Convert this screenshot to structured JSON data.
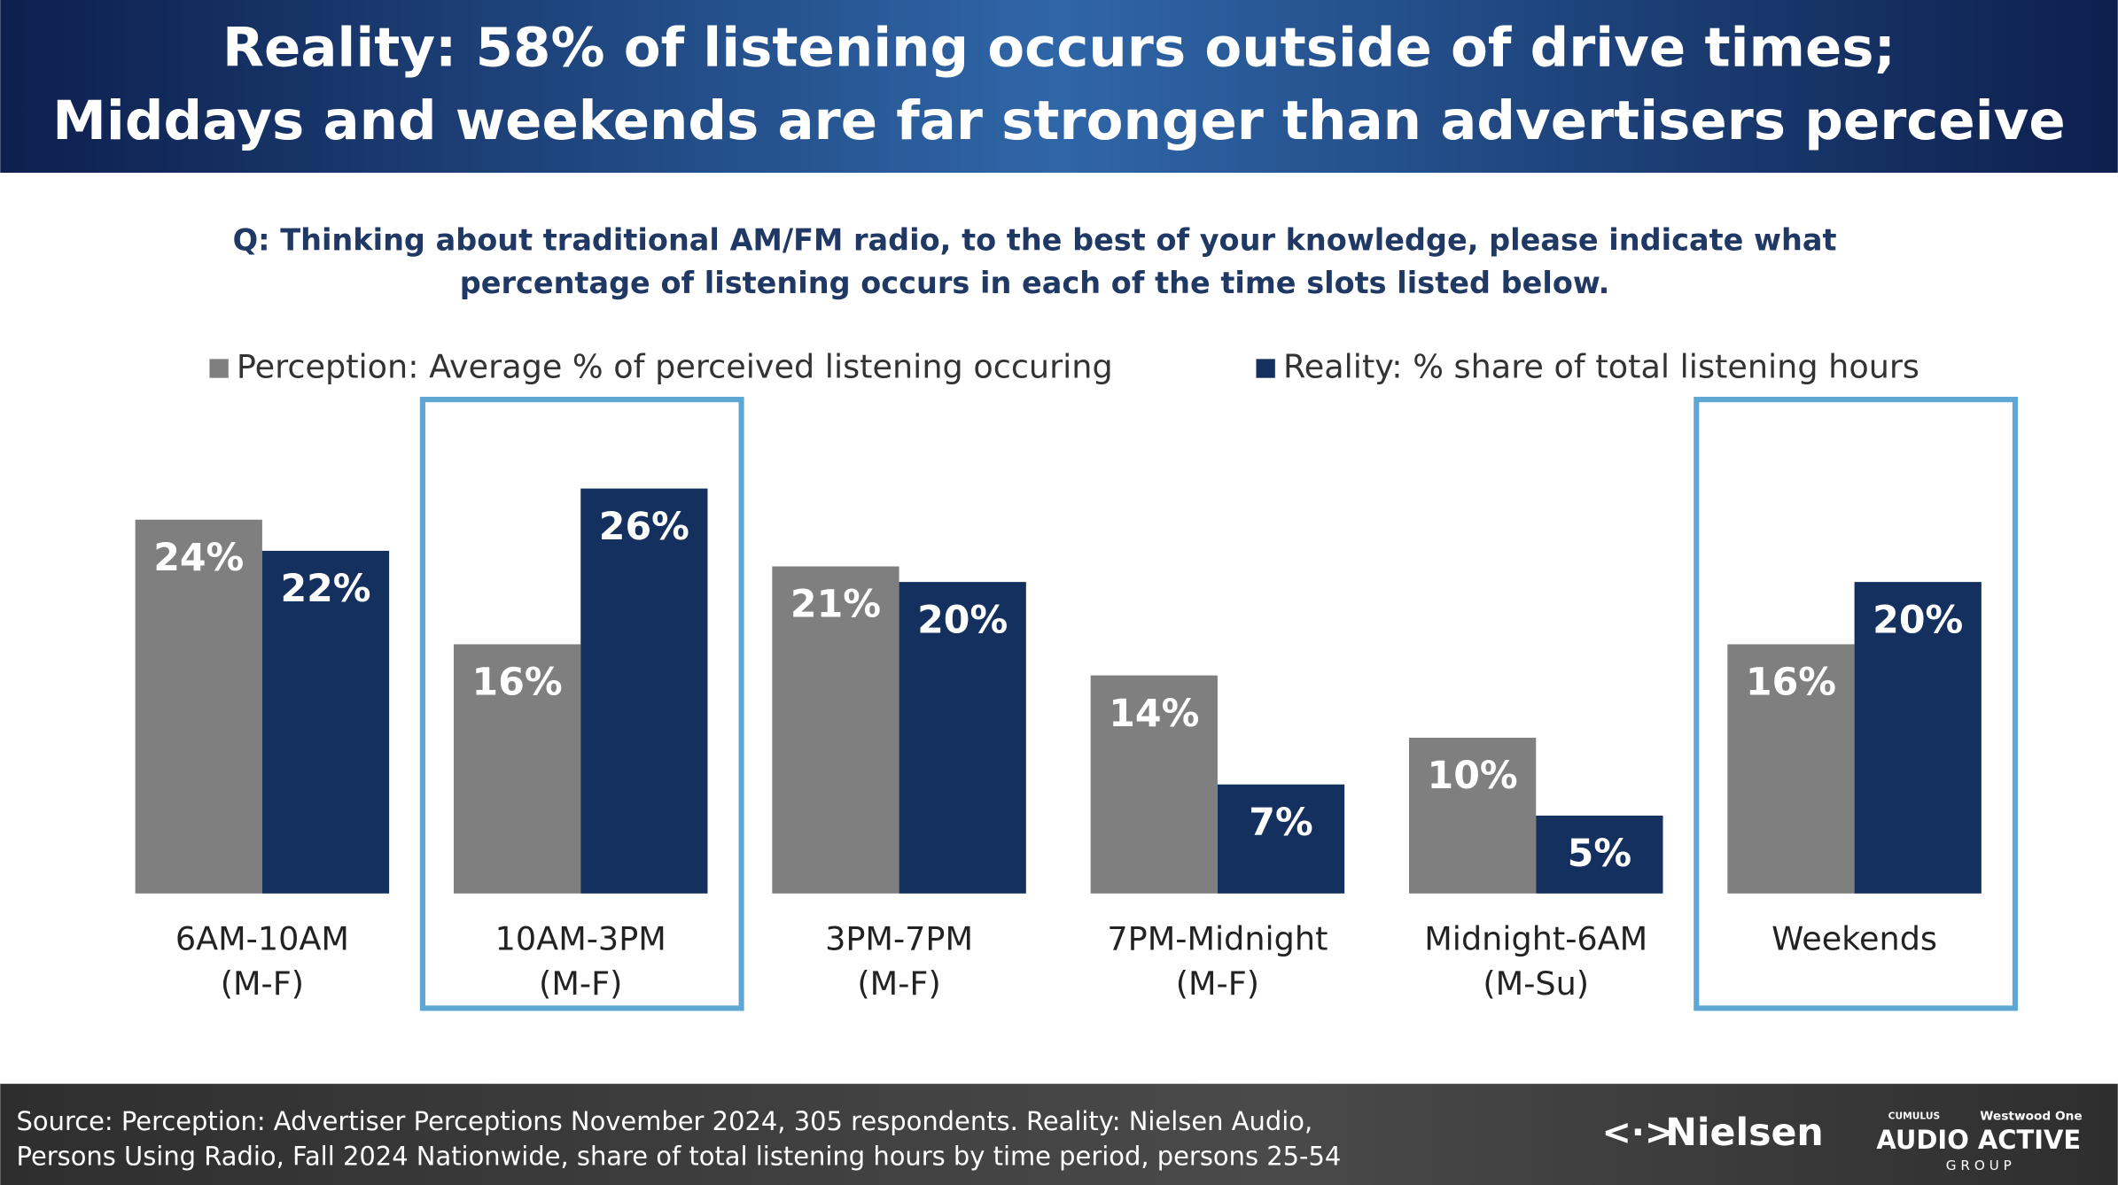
{
  "header": {
    "title": [
      "Reality: 58% of listening occurs outside of drive times;",
      "Middays and weekends are far stronger than advertisers perceive"
    ]
  },
  "chart_data": {
    "type": "bar",
    "question": [
      "Q: Thinking about traditional AM/FM radio, to the best of your knowledge, please indicate what",
      "percentage of listening occurs in each of the time slots listed below."
    ],
    "categories": [
      [
        "6AM-10AM",
        "(M-F)"
      ],
      [
        "10AM-3PM",
        "(M-F)"
      ],
      [
        "3PM-7PM",
        "(M-F)"
      ],
      [
        "7PM-Midnight",
        "(M-F)"
      ],
      [
        "Midnight-6AM",
        "(M-Su)"
      ],
      [
        "Weekends"
      ]
    ],
    "series": [
      {
        "name": "Perception: Average % of perceived listening occuring",
        "color": "#7f7f7f",
        "values": [
          24,
          16,
          21,
          14,
          10,
          16
        ],
        "value_labels": [
          "24%",
          "16%",
          "21%",
          "14%",
          "10%",
          "16%"
        ]
      },
      {
        "name": "Reality: % share of total listening hours",
        "color": "#14305f",
        "values": [
          22,
          26,
          20,
          7,
          5,
          20
        ],
        "value_labels": [
          "22%",
          "26%",
          "20%",
          "7%",
          "5%",
          "20%"
        ]
      }
    ],
    "highlight_categories": [
      1,
      5
    ],
    "highlight_color": "#5ea7d5",
    "legend": "top"
  },
  "footer": {
    "source": [
      "Source: Perception: Advertiser Perceptions November 2024, 305 respondents. Reality: Nielsen Audio,",
      "Persons Using Radio, Fall 2024 Nationwide, share of total listening hours by time period, persons 25-54"
    ],
    "logos": {
      "nielsen": "Nielsen",
      "cumulus": "CUMULUS",
      "westwood": "Westwood One",
      "audio_active": "AUDIO ACTIVE",
      "group": "G R O U P"
    }
  }
}
